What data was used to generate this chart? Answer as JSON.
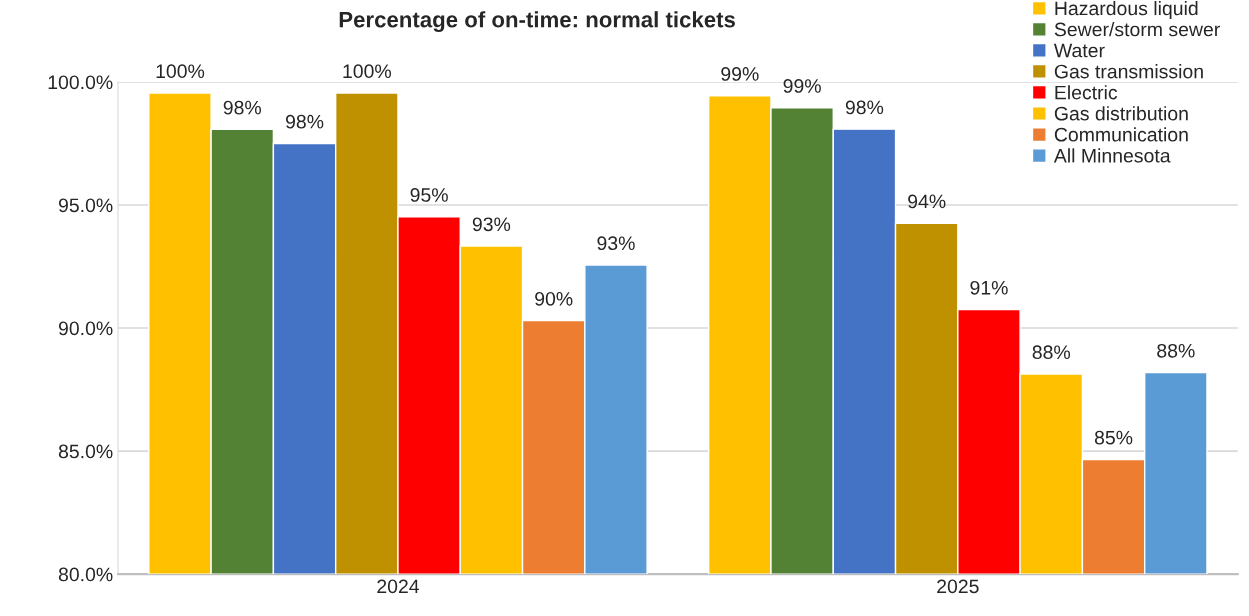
{
  "chart_data": {
    "type": "bar",
    "title": "Percentage of on-time: normal tickets",
    "categories": [
      "2024",
      "2025"
    ],
    "series": [
      {
        "name": "Hazardous liquid",
        "color": "#ffc000",
        "values": [
          99.55,
          99.44
        ],
        "value_labels": [
          "100%",
          "99%"
        ]
      },
      {
        "name": "Sewer/storm sewer",
        "color": "#548235",
        "values": [
          98.07,
          98.95
        ],
        "value_labels": [
          "98%",
          "99%"
        ]
      },
      {
        "name": "Water",
        "color": "#4472c4",
        "values": [
          97.5,
          98.08
        ],
        "value_labels": [
          "98%",
          "98%"
        ]
      },
      {
        "name": "Gas transmission",
        "color": "#bf9000",
        "values": [
          99.55,
          94.26
        ],
        "value_labels": [
          "100%",
          "94%"
        ]
      },
      {
        "name": "Electric",
        "color": "#ff0000",
        "values": [
          94.52,
          90.75
        ],
        "value_labels": [
          "95%",
          "91%"
        ]
      },
      {
        "name": "Gas distribution",
        "color": "#ffc000",
        "values": [
          93.33,
          88.13
        ],
        "value_labels": [
          "93%",
          "88%"
        ]
      },
      {
        "name": "Communication",
        "color": "#ed7d31",
        "values": [
          90.3,
          84.66
        ],
        "value_labels": [
          "90%",
          "85%"
        ]
      },
      {
        "name": "All Minnesota",
        "color": "#5b9bd5",
        "values": [
          92.56,
          88.19
        ],
        "value_labels": [
          "93%",
          "88%"
        ]
      }
    ],
    "ylim": [
      80,
      100
    ],
    "yticks": [
      {
        "value": 80,
        "label": "80.0%"
      },
      {
        "value": 85,
        "label": "85.0%"
      },
      {
        "value": 90,
        "label": "90.0%"
      },
      {
        "value": 95,
        "label": "95.0%"
      },
      {
        "value": 100,
        "label": "100.0%"
      }
    ],
    "grid": "y",
    "legend": "top right"
  }
}
